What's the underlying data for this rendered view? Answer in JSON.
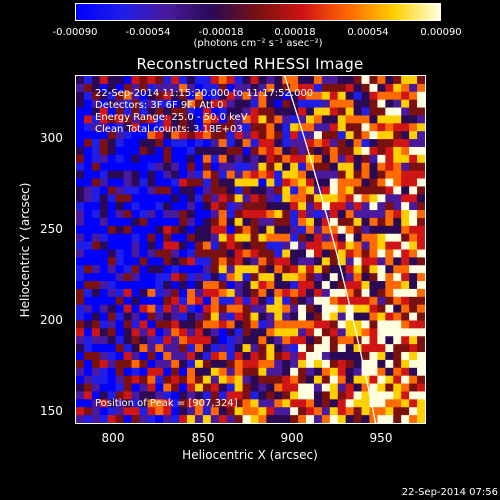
{
  "colorbar": {
    "ticks": [
      "-0.00090",
      "-0.00054",
      "-0.00018",
      "0.00018",
      "0.00054",
      "0.00090"
    ],
    "units": "(photons cm⁻² s⁻¹ asec⁻²)"
  },
  "title": "Reconstructed RHESSI Image",
  "info": {
    "time": "22-Sep-2014 11:15:20.000 to 11:17:52.000",
    "detectors": "Detectors: 3F 6F 9F, Att 0",
    "energy": "Energy Range: 25.0 - 50.0 keV",
    "clean": "Clean    Total counts: 3.18E+03",
    "peak": "Position of Peak = [907,324]"
  },
  "axes": {
    "xlabel": "Heliocentric X (arcsec)",
    "ylabel": "Heliocentric Y (arcsec)",
    "xticks": [
      "800",
      "850",
      "900",
      "950"
    ],
    "yticks": [
      "300",
      "250",
      "200",
      "150"
    ]
  },
  "timestamp": "22-Sep-2014 07:56",
  "colors": {
    "limb": "#ffffff",
    "colormap": [
      "#0000ff",
      "#1e1ee8",
      "#4a1a9e",
      "#2a0a55",
      "#7a1010",
      "#d01515",
      "#ff6a00",
      "#ffd000",
      "#ffffe0"
    ]
  }
}
